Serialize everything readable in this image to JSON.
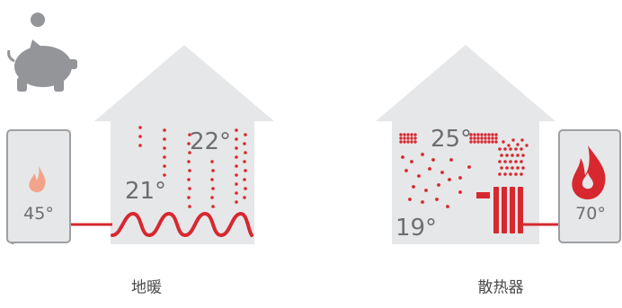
{
  "colors": {
    "house": "#e6e7e8",
    "boiler_fill": "#e6e7e8",
    "boiler_stroke": "#9d9fa2",
    "text": "#6d6e70",
    "accent": "#d7282f",
    "piggy": "#939598",
    "flame_light": "#f2a48a"
  },
  "icons": {
    "savings": "piggy-bank-coin-icon",
    "floor_flame": "small-flame-icon",
    "radiator_flame": "large-flame-icon",
    "floor_pipe": "floor-heating-coil-icon",
    "radiator": "radiator-icon"
  },
  "floor_heating": {
    "boiler_temp": "45°",
    "low_temp": "21°",
    "high_temp": "22°",
    "caption": "地暖"
  },
  "radiator_heating": {
    "boiler_temp": "70°",
    "low_temp": "19°",
    "high_temp": "25°",
    "caption": "散热器"
  }
}
